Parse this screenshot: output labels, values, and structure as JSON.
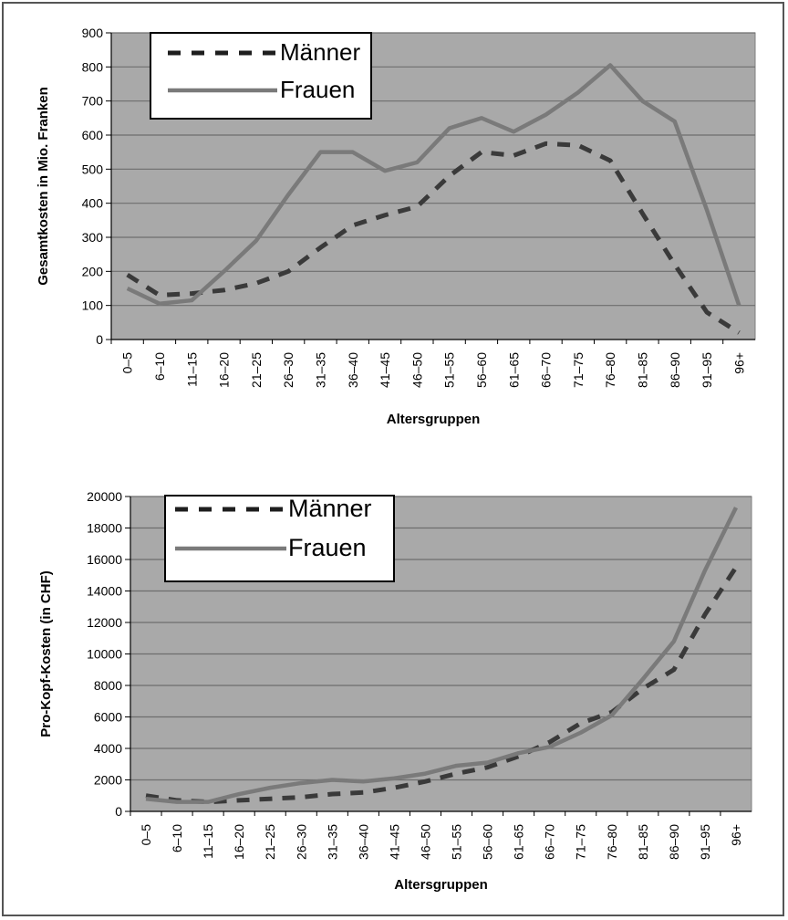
{
  "colors": {
    "plot_background": "#a9a9a9",
    "gridline": "#6e6e6e",
    "frauen_line": "#7a7a7a",
    "maenner_line": "#3a3a3a"
  },
  "chart_data": [
    {
      "type": "line",
      "title": "",
      "xlabel": "Altersgruppen",
      "ylabel": "Gesamtkosten in Mio. Franken",
      "categories": [
        "0–5",
        "6–10",
        "11–15",
        "16–20",
        "21–25",
        "26–30",
        "31–35",
        "36–40",
        "41–45",
        "46–50",
        "51–55",
        "56–60",
        "61–65",
        "66–70",
        "71–75",
        "76–80",
        "81–85",
        "86–90",
        "91–95",
        "96+"
      ],
      "ylim": [
        0,
        900
      ],
      "yticks": [
        "0",
        "100",
        "200",
        "300",
        "400",
        "500",
        "600",
        "700",
        "800",
        "900"
      ],
      "grid": true,
      "legend_position": "top-left",
      "series": [
        {
          "name": "Männer",
          "style": "dashed",
          "values": [
            190,
            130,
            135,
            145,
            165,
            200,
            270,
            335,
            365,
            390,
            480,
            550,
            540,
            575,
            570,
            525,
            370,
            220,
            80,
            20
          ]
        },
        {
          "name": "Frauen",
          "style": "solid",
          "values": [
            150,
            105,
            115,
            200,
            290,
            425,
            550,
            550,
            495,
            520,
            620,
            650,
            610,
            660,
            725,
            805,
            700,
            640,
            380,
            100
          ]
        }
      ]
    },
    {
      "type": "line",
      "title": "",
      "xlabel": "Altersgruppen",
      "ylabel": "Pro-Kopf-Kosten (in CHF)",
      "categories": [
        "0–5",
        "6–10",
        "11–15",
        "16–20",
        "21–25",
        "26–30",
        "31–35",
        "36–40",
        "41–45",
        "46–50",
        "51–55",
        "56–60",
        "61–65",
        "66–70",
        "71–75",
        "76–80",
        "81–85",
        "86–90",
        "91–95",
        "96+"
      ],
      "ylim": [
        0,
        20000
      ],
      "yticks": [
        "0",
        "2000",
        "4000",
        "6000",
        "8000",
        "10000",
        "12000",
        "14000",
        "16000",
        "18000",
        "20000"
      ],
      "grid": true,
      "legend_position": "top-left",
      "series": [
        {
          "name": "Männer",
          "style": "dashed",
          "values": [
            1000,
            700,
            600,
            700,
            800,
            900,
            1100,
            1200,
            1500,
            1900,
            2400,
            2800,
            3500,
            4400,
            5600,
            6300,
            7800,
            9000,
            12500,
            15500
          ]
        },
        {
          "name": "Frauen",
          "style": "solid",
          "values": [
            800,
            600,
            600,
            1100,
            1500,
            1800,
            2000,
            1900,
            2100,
            2400,
            2900,
            3100,
            3700,
            4100,
            5000,
            6100,
            8400,
            10800,
            15300,
            19300
          ]
        }
      ]
    }
  ]
}
